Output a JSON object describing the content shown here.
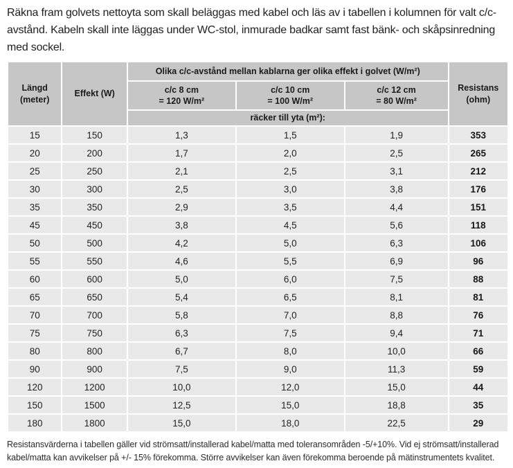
{
  "intro": "Räkna fram golvets nettoyta som skall beläggas med kabel och läs av i tabellen i kolumnen för valt c/c-avstånd. Kabeln skall inte läggas under WC-stol, inmurade badkar samt fast bänk- och skåpsinredning med sockel.",
  "table": {
    "group_header": "Olika c/c-avstånd mellan kablarna ger olika effekt i golvet (W/m²)",
    "col_langd": "Längd\n(meter)",
    "col_effekt": "Effekt (W)",
    "col_cc8": "c/c 8 cm\n= 120 W/m²",
    "col_cc10": "c/c 10 cm\n= 100 W/m²",
    "col_cc12": "c/c 12 cm\n= 80 W/m²",
    "col_resistans": "Resistans\n(ohm)",
    "subheader": "räcker till yta (m²):",
    "rows": [
      [
        "15",
        "150",
        "1,3",
        "1,5",
        "1,9",
        "353"
      ],
      [
        "20",
        "200",
        "1,7",
        "2,0",
        "2,5",
        "265"
      ],
      [
        "25",
        "250",
        "2,1",
        "2,5",
        "3,1",
        "212"
      ],
      [
        "30",
        "300",
        "2,5",
        "3,0",
        "3,8",
        "176"
      ],
      [
        "35",
        "350",
        "2,9",
        "3,5",
        "4,4",
        "151"
      ],
      [
        "45",
        "450",
        "3,8",
        "4,5",
        "5,6",
        "118"
      ],
      [
        "50",
        "500",
        "4,2",
        "5,0",
        "6,3",
        "106"
      ],
      [
        "55",
        "550",
        "4,6",
        "5,5",
        "6,9",
        "96"
      ],
      [
        "60",
        "600",
        "5,0",
        "6,0",
        "7,5",
        "88"
      ],
      [
        "65",
        "650",
        "5,4",
        "6,5",
        "8,1",
        "81"
      ],
      [
        "70",
        "700",
        "5,8",
        "7,0",
        "8,8",
        "76"
      ],
      [
        "75",
        "750",
        "6,3",
        "7,5",
        "9,4",
        "71"
      ],
      [
        "80",
        "800",
        "6,7",
        "8,0",
        "10,0",
        "66"
      ],
      [
        "90",
        "900",
        "7,5",
        "9,0",
        "11,3",
        "59"
      ],
      [
        "120",
        "1200",
        "10,0",
        "12,0",
        "15,0",
        "44"
      ],
      [
        "150",
        "1500",
        "12,5",
        "15,0",
        "18,8",
        "35"
      ],
      [
        "180",
        "1800",
        "15,0",
        "18,0",
        "22,5",
        "29"
      ]
    ]
  },
  "footnote": "Resistansvärderna i tabellen gäller vid strömsatt/installerad kabel/matta med toleransområden -5/+10%. Vid ej strömsatt/installerad kabel/matta kan avvikelser på +/- 15% förekomma. Större avvikelser kan även förekomma beroende på mätinstrumentets kvalitet.",
  "colors": {
    "header_bg": "#c6c6c6",
    "row_bg": "#e9e9e9",
    "text": "#1f1f1f",
    "gap": "#ffffff"
  }
}
